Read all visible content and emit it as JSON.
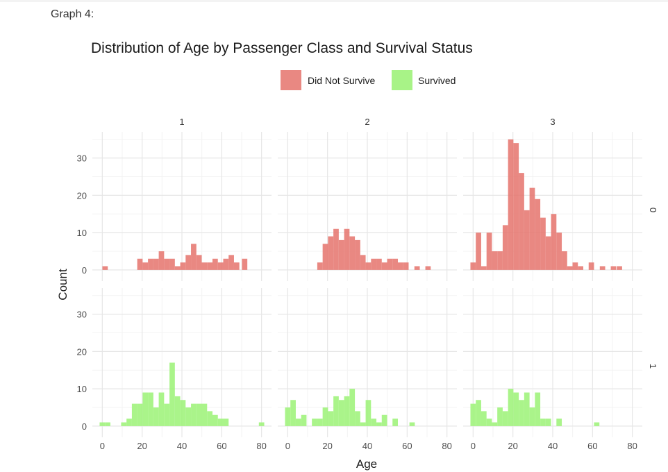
{
  "page": {
    "label": "Graph 4:"
  },
  "chart_data": {
    "type": "bar",
    "title": "Distribution of Age by Passenger Class and Survival Status",
    "xlabel": "Age",
    "ylabel": "Count",
    "xlim": [
      -5,
      85
    ],
    "ylim": [
      -3,
      37
    ],
    "x_ticks": [
      0,
      20,
      40,
      60,
      80
    ],
    "y_ticks": [
      0,
      10,
      20,
      30
    ],
    "bin_width": 2.7,
    "columns": [
      "1",
      "2",
      "3"
    ],
    "rows": [
      "0",
      "1"
    ],
    "legend": {
      "position": "top",
      "entries": [
        "Did Not Survive",
        "Survived"
      ]
    },
    "colors": {
      "Did Not Survive": "#e5736c",
      "Survived": "#9ef27a"
    },
    "grid": true,
    "panels": [
      {
        "class": "1",
        "survived": "0",
        "series": "Did Not Survive",
        "bins": [
          [
            1.4,
            1
          ],
          [
            18.9,
            3
          ],
          [
            21.6,
            2
          ],
          [
            24.3,
            3
          ],
          [
            27.0,
            3
          ],
          [
            29.7,
            5
          ],
          [
            32.4,
            3
          ],
          [
            35.1,
            3
          ],
          [
            37.8,
            1
          ],
          [
            40.5,
            2
          ],
          [
            43.2,
            4
          ],
          [
            45.9,
            7
          ],
          [
            48.6,
            4
          ],
          [
            51.3,
            2
          ],
          [
            54.0,
            2
          ],
          [
            56.7,
            3
          ],
          [
            59.4,
            2
          ],
          [
            62.1,
            3
          ],
          [
            64.8,
            4
          ],
          [
            67.5,
            2
          ],
          [
            71.5,
            3
          ]
        ]
      },
      {
        "class": "2",
        "survived": "0",
        "series": "Did Not Survive",
        "bins": [
          [
            16.2,
            2
          ],
          [
            18.9,
            7
          ],
          [
            21.6,
            9
          ],
          [
            24.3,
            11
          ],
          [
            27.0,
            8
          ],
          [
            29.7,
            11
          ],
          [
            32.4,
            9
          ],
          [
            35.1,
            8
          ],
          [
            37.8,
            4
          ],
          [
            40.5,
            2
          ],
          [
            43.2,
            3
          ],
          [
            45.9,
            3
          ],
          [
            48.6,
            2
          ],
          [
            51.3,
            3
          ],
          [
            54.0,
            3
          ],
          [
            56.7,
            2
          ],
          [
            59.4,
            2
          ],
          [
            65.0,
            1
          ],
          [
            70.5,
            1
          ]
        ]
      },
      {
        "class": "3",
        "survived": "0",
        "series": "Did Not Survive",
        "bins": [
          [
            0.0,
            2
          ],
          [
            2.7,
            10
          ],
          [
            5.4,
            1
          ],
          [
            8.1,
            10
          ],
          [
            10.8,
            5
          ],
          [
            13.5,
            5
          ],
          [
            16.2,
            12
          ],
          [
            18.9,
            35
          ],
          [
            21.6,
            34
          ],
          [
            24.3,
            26
          ],
          [
            27.0,
            16
          ],
          [
            29.7,
            22
          ],
          [
            32.4,
            19
          ],
          [
            35.1,
            14
          ],
          [
            37.8,
            9
          ],
          [
            40.5,
            15
          ],
          [
            43.2,
            10
          ],
          [
            45.9,
            5
          ],
          [
            48.6,
            1
          ],
          [
            51.3,
            2
          ],
          [
            54.0,
            1
          ],
          [
            59.4,
            2
          ],
          [
            65.0,
            1
          ],
          [
            70.5,
            1
          ],
          [
            73.5,
            1
          ]
        ]
      },
      {
        "class": "1",
        "survived": "1",
        "series": "Survived",
        "bins": [
          [
            0.0,
            1
          ],
          [
            2.7,
            1
          ],
          [
            10.8,
            1
          ],
          [
            13.5,
            2
          ],
          [
            16.2,
            6
          ],
          [
            18.9,
            6
          ],
          [
            21.6,
            9
          ],
          [
            24.3,
            9
          ],
          [
            27.0,
            5
          ],
          [
            29.7,
            9
          ],
          [
            32.4,
            6
          ],
          [
            35.1,
            17
          ],
          [
            37.8,
            8
          ],
          [
            40.5,
            7
          ],
          [
            43.2,
            5
          ],
          [
            45.9,
            6
          ],
          [
            48.6,
            6
          ],
          [
            51.3,
            6
          ],
          [
            54.0,
            4
          ],
          [
            56.7,
            3
          ],
          [
            59.4,
            2
          ],
          [
            62.1,
            2
          ],
          [
            80.0,
            1
          ]
        ]
      },
      {
        "class": "2",
        "survived": "1",
        "series": "Survived",
        "bins": [
          [
            0.0,
            5
          ],
          [
            2.7,
            7
          ],
          [
            5.4,
            2
          ],
          [
            8.1,
            3
          ],
          [
            13.5,
            2
          ],
          [
            16.2,
            2
          ],
          [
            18.9,
            5
          ],
          [
            21.6,
            4
          ],
          [
            24.3,
            8
          ],
          [
            27.0,
            7
          ],
          [
            29.7,
            8
          ],
          [
            32.4,
            10
          ],
          [
            35.1,
            4
          ],
          [
            37.8,
            1
          ],
          [
            40.5,
            7
          ],
          [
            43.2,
            2
          ],
          [
            45.9,
            1
          ],
          [
            48.6,
            3
          ],
          [
            54.0,
            2
          ],
          [
            62.5,
            1
          ]
        ]
      },
      {
        "class": "3",
        "survived": "1",
        "series": "Survived",
        "bins": [
          [
            0.0,
            6
          ],
          [
            2.7,
            7
          ],
          [
            5.4,
            4
          ],
          [
            8.1,
            2
          ],
          [
            10.8,
            1
          ],
          [
            13.5,
            5
          ],
          [
            16.2,
            4
          ],
          [
            18.9,
            10
          ],
          [
            21.6,
            9
          ],
          [
            24.3,
            7
          ],
          [
            27.0,
            9
          ],
          [
            29.7,
            5
          ],
          [
            32.4,
            9
          ],
          [
            35.1,
            2
          ],
          [
            37.8,
            2
          ],
          [
            43.2,
            2
          ],
          [
            62.1,
            1
          ]
        ]
      }
    ]
  }
}
